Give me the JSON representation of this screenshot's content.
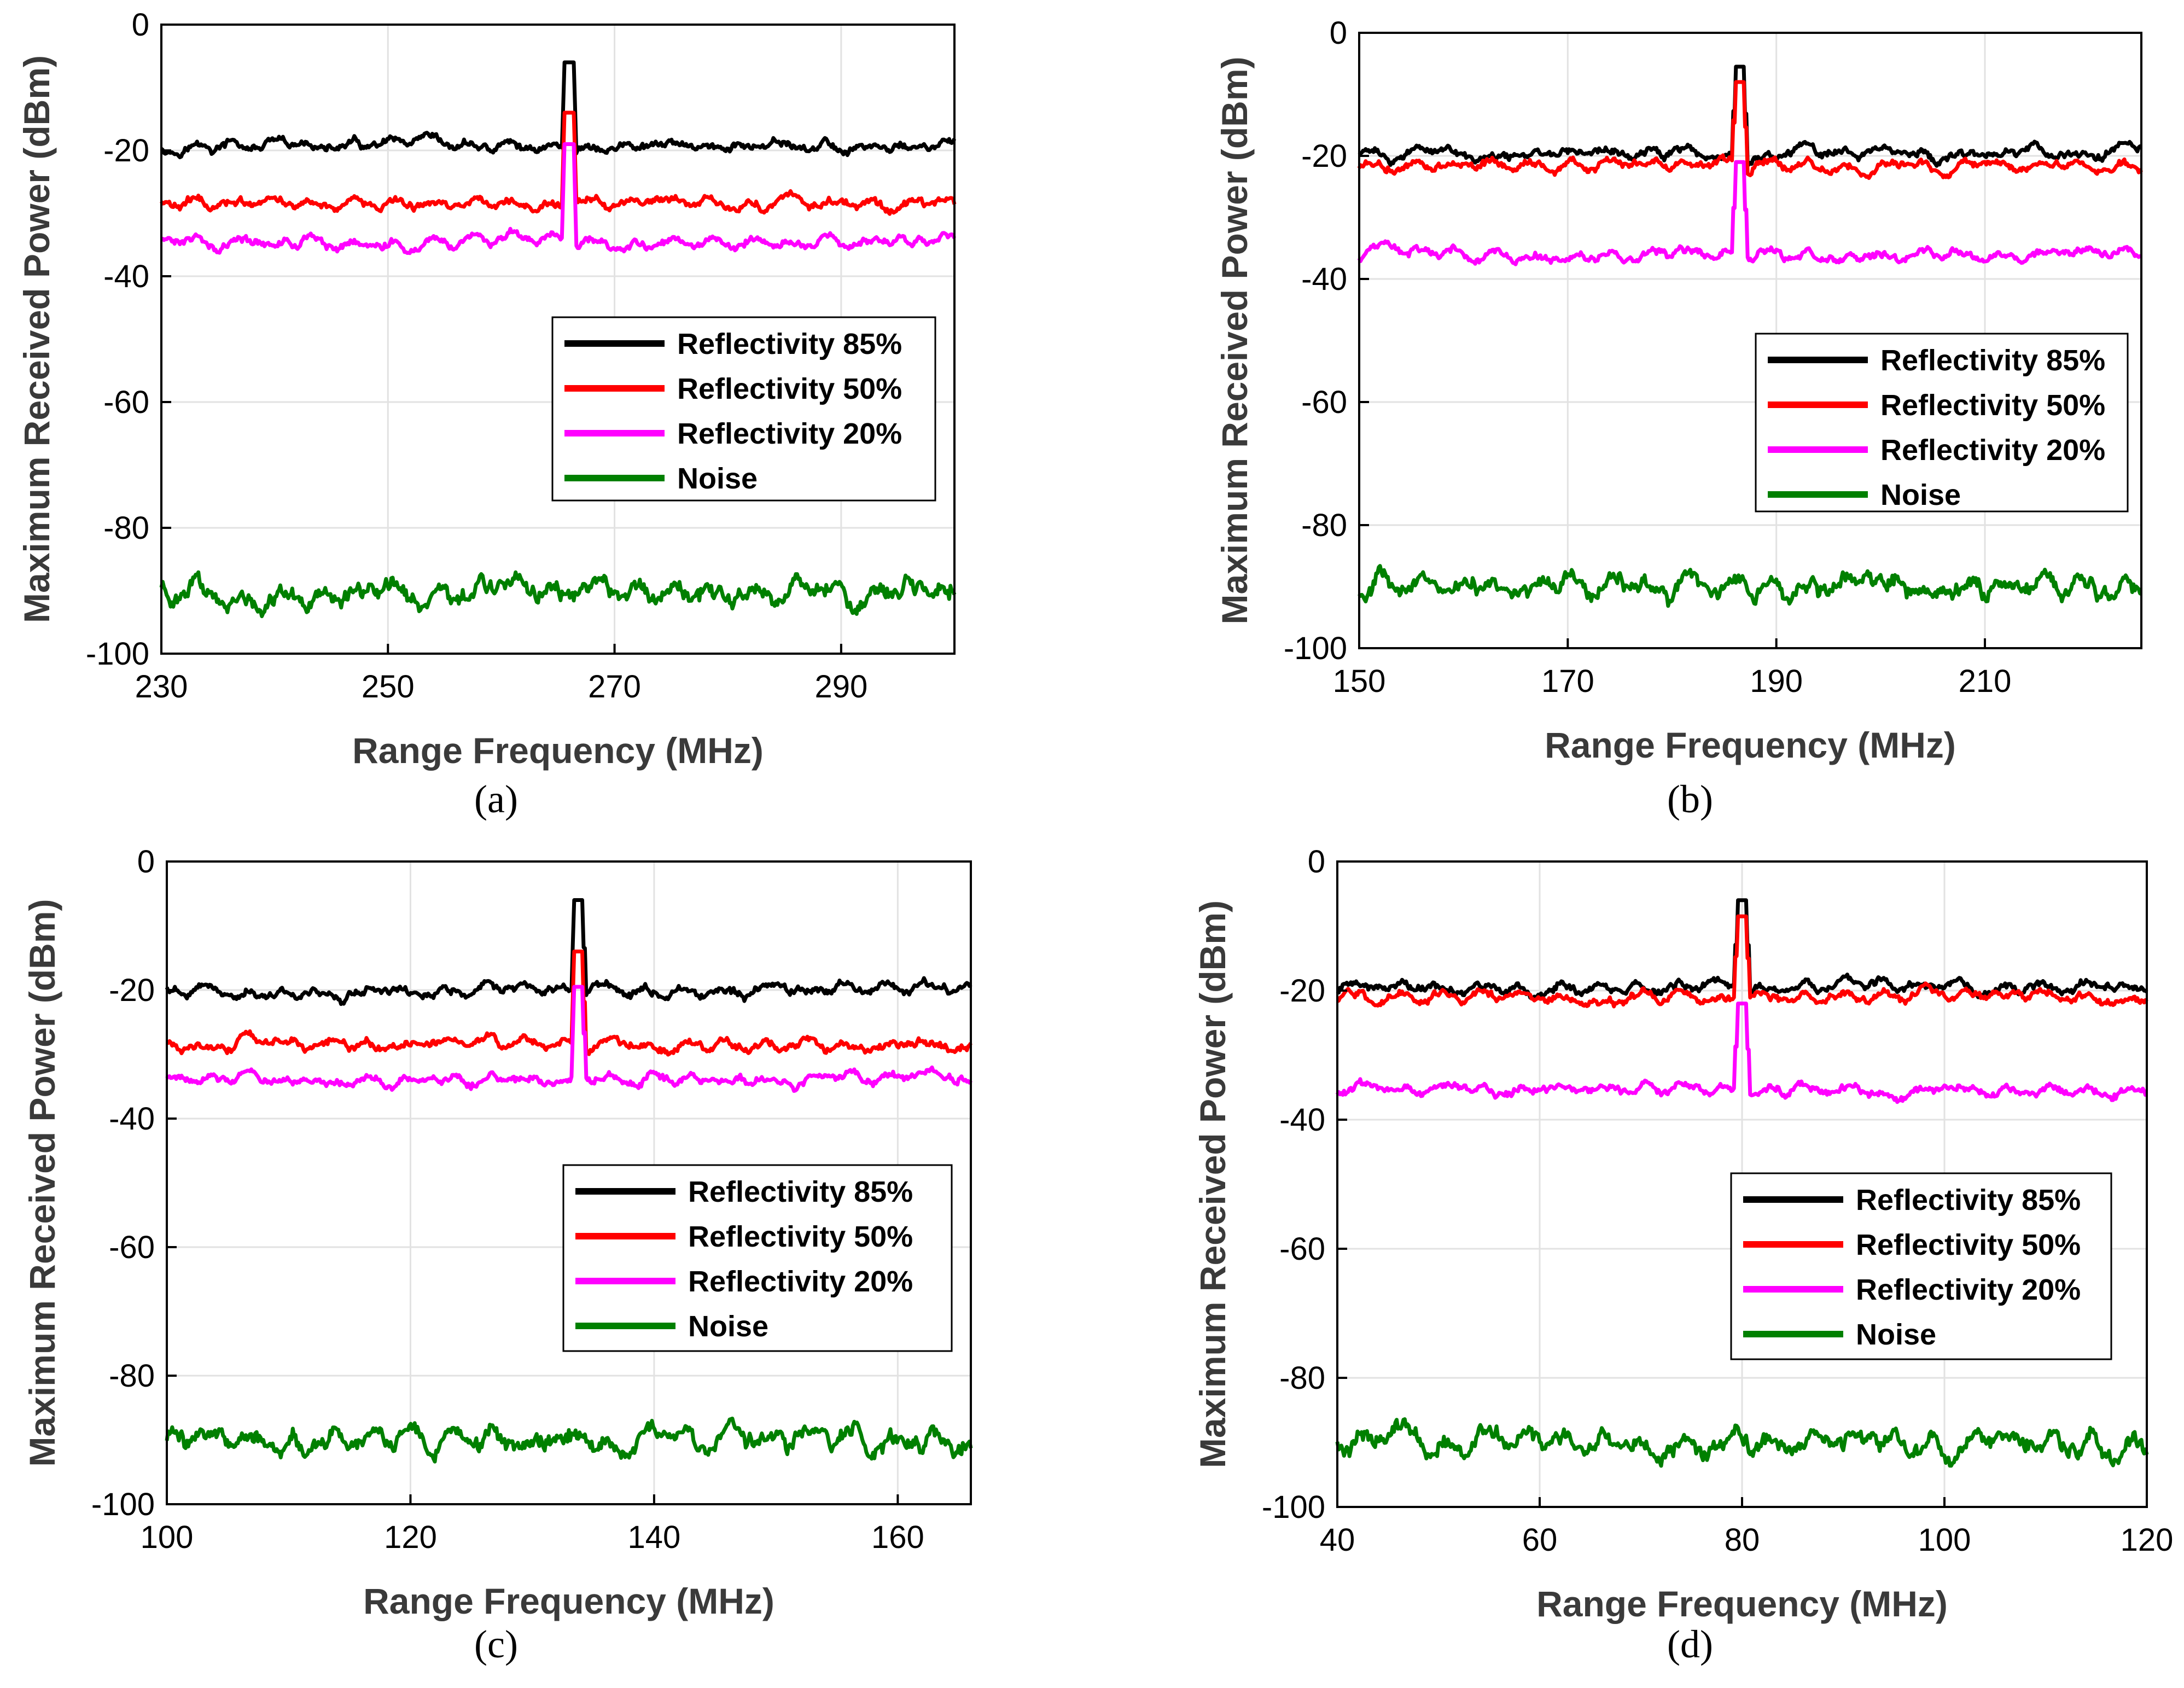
{
  "figure": {
    "captions": [
      "(a)",
      "(b)",
      "(c)",
      "(d)"
    ]
  },
  "colors": {
    "r85": "#000000",
    "r50": "#ff0000",
    "r20": "#ff00ff",
    "noise": "#008000",
    "grid": "#e2e2e2"
  },
  "chart_data": [
    {
      "type": "line",
      "panel": "a",
      "xlabel": "Range Frequency (MHz)",
      "ylabel": "Maximum Received Power (dBm)",
      "xlim": [
        230,
        300
      ],
      "ylim": [
        -100,
        0
      ],
      "xticks": [
        230,
        250,
        270,
        290
      ],
      "yticks": [
        0,
        -20,
        -40,
        -60,
        -80,
        -100
      ],
      "peak_x": 266,
      "legend": [
        "Reflectivity 85%",
        "Reflectivity 50%",
        "Reflectivity 20%",
        "Noise"
      ],
      "series": [
        {
          "name": "Reflectivity 85%",
          "baseline": -19.5,
          "peak": -6
        },
        {
          "name": "Reflectivity 50%",
          "baseline": -28.5,
          "peak": -14
        },
        {
          "name": "Reflectivity 20%",
          "baseline": -34.5,
          "peak": -19
        },
        {
          "name": "Noise",
          "baseline": -90
        }
      ]
    },
    {
      "type": "line",
      "panel": "b",
      "xlabel": "Range Frequency (MHz)",
      "ylabel": "Maximum Received Power (dBm)",
      "xlim": [
        150,
        225
      ],
      "ylim": [
        -100,
        0
      ],
      "xticks": [
        150,
        170,
        190,
        210
      ],
      "yticks": [
        0,
        -20,
        -40,
        -60,
        -80,
        -100
      ],
      "peak_x": 186.5,
      "legend": [
        "Reflectivity 85%",
        "Reflectivity 50%",
        "Reflectivity 20%",
        "Noise"
      ],
      "series": [
        {
          "name": "Reflectivity 85%",
          "baseline": -19.5,
          "peak": -5.5
        },
        {
          "name": "Reflectivity 50%",
          "baseline": -21.5,
          "peak": -8
        },
        {
          "name": "Reflectivity 20%",
          "baseline": -36,
          "peak": -21
        },
        {
          "name": "Noise",
          "baseline": -90
        }
      ]
    },
    {
      "type": "line",
      "panel": "c",
      "xlabel": "Range Frequency (MHz)",
      "ylabel": "Maximum Received Power (dBm)",
      "xlim": [
        100,
        166
      ],
      "ylim": [
        -100,
        0
      ],
      "xticks": [
        100,
        120,
        140,
        160
      ],
      "yticks": [
        0,
        -20,
        -40,
        -60,
        -80,
        -100
      ],
      "peak_x": 133.8,
      "legend": [
        "Reflectivity 85%",
        "Reflectivity 50%",
        "Reflectivity 20%",
        "Noise"
      ],
      "series": [
        {
          "name": "Reflectivity 85%",
          "baseline": -20,
          "peak": -6
        },
        {
          "name": "Reflectivity 50%",
          "baseline": -28.5,
          "peak": -14
        },
        {
          "name": "Reflectivity 20%",
          "baseline": -34,
          "peak": -19.5
        },
        {
          "name": "Noise",
          "baseline": -90
        }
      ]
    },
    {
      "type": "line",
      "panel": "d",
      "xlabel": "Range Frequency (MHz)",
      "ylabel": "Maximum Received Power (dBm)",
      "xlim": [
        40,
        120
      ],
      "ylim": [
        -100,
        0
      ],
      "xticks": [
        40,
        60,
        80,
        100,
        120
      ],
      "yticks": [
        0,
        -20,
        -40,
        -60,
        -80,
        -100
      ],
      "peak_x": 80,
      "legend": [
        "Reflectivity 85%",
        "Reflectivity 50%",
        "Reflectivity 20%",
        "Noise"
      ],
      "series": [
        {
          "name": "Reflectivity 85%",
          "baseline": -19.5,
          "peak": -6
        },
        {
          "name": "Reflectivity 50%",
          "baseline": -21,
          "peak": -8.5
        },
        {
          "name": "Reflectivity 20%",
          "baseline": -35.5,
          "peak": -22
        },
        {
          "name": "Noise",
          "baseline": -90
        }
      ]
    }
  ]
}
